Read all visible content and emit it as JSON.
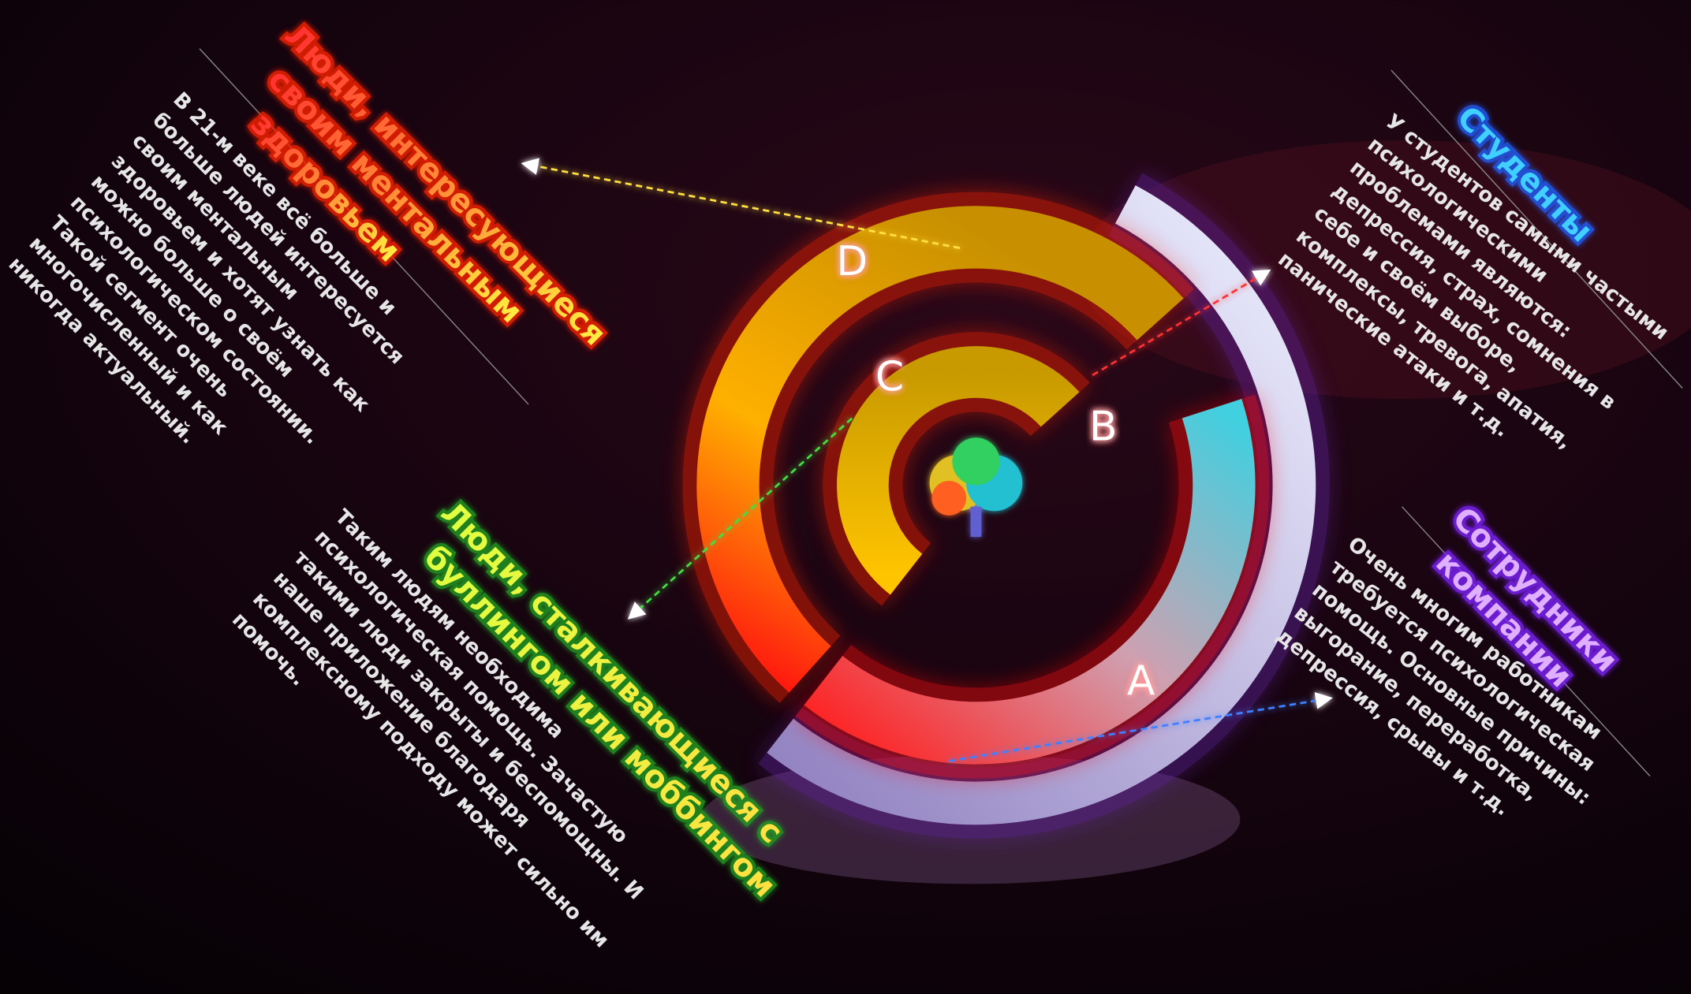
{
  "segments": [
    {
      "letter": "D",
      "title": [
        "Люди, интересующиеся",
        "своим ментальным",
        "здоровьем"
      ],
      "text": [
        "В 21-м веке всё больше и",
        "больше людей интересуется",
        "своим ментальным",
        "здоровьем и хотят узнать как",
        "можно больше о своём",
        "психологическом состоянии.",
        "Такой сегмент очень",
        "многочисленный и как",
        "никогда актуальный."
      ]
    },
    {
      "letter": "C",
      "title": [
        "Люди, сталкивающиеся с",
        "буллингом или моббингом"
      ],
      "text": [
        "Таким людям необходима",
        "психологическая помощь. Зачастую",
        "такими люди закрыты и беспомощны. И",
        "наше приложение благодаря",
        "комплексному подходу может сильно им",
        "помочь."
      ]
    },
    {
      "letter": "B",
      "title": [
        "Студенты"
      ],
      "text": [
        "У студентов самыми частыми",
        "психологическими",
        "проблемами являются:",
        "депрессия, страх, сомнения в",
        "себе и своём выборе,",
        "комплексы, тревога, апатия,",
        "панические атаки и т.д."
      ]
    },
    {
      "letter": "A",
      "title": [
        "Сотрудники",
        "компании"
      ],
      "text": [
        "Очень многим работникам",
        "требуется психологическая",
        "помощь. Основные причины:",
        "выгорание, переработка,",
        "депрессия, срывы и т.д."
      ]
    }
  ]
}
